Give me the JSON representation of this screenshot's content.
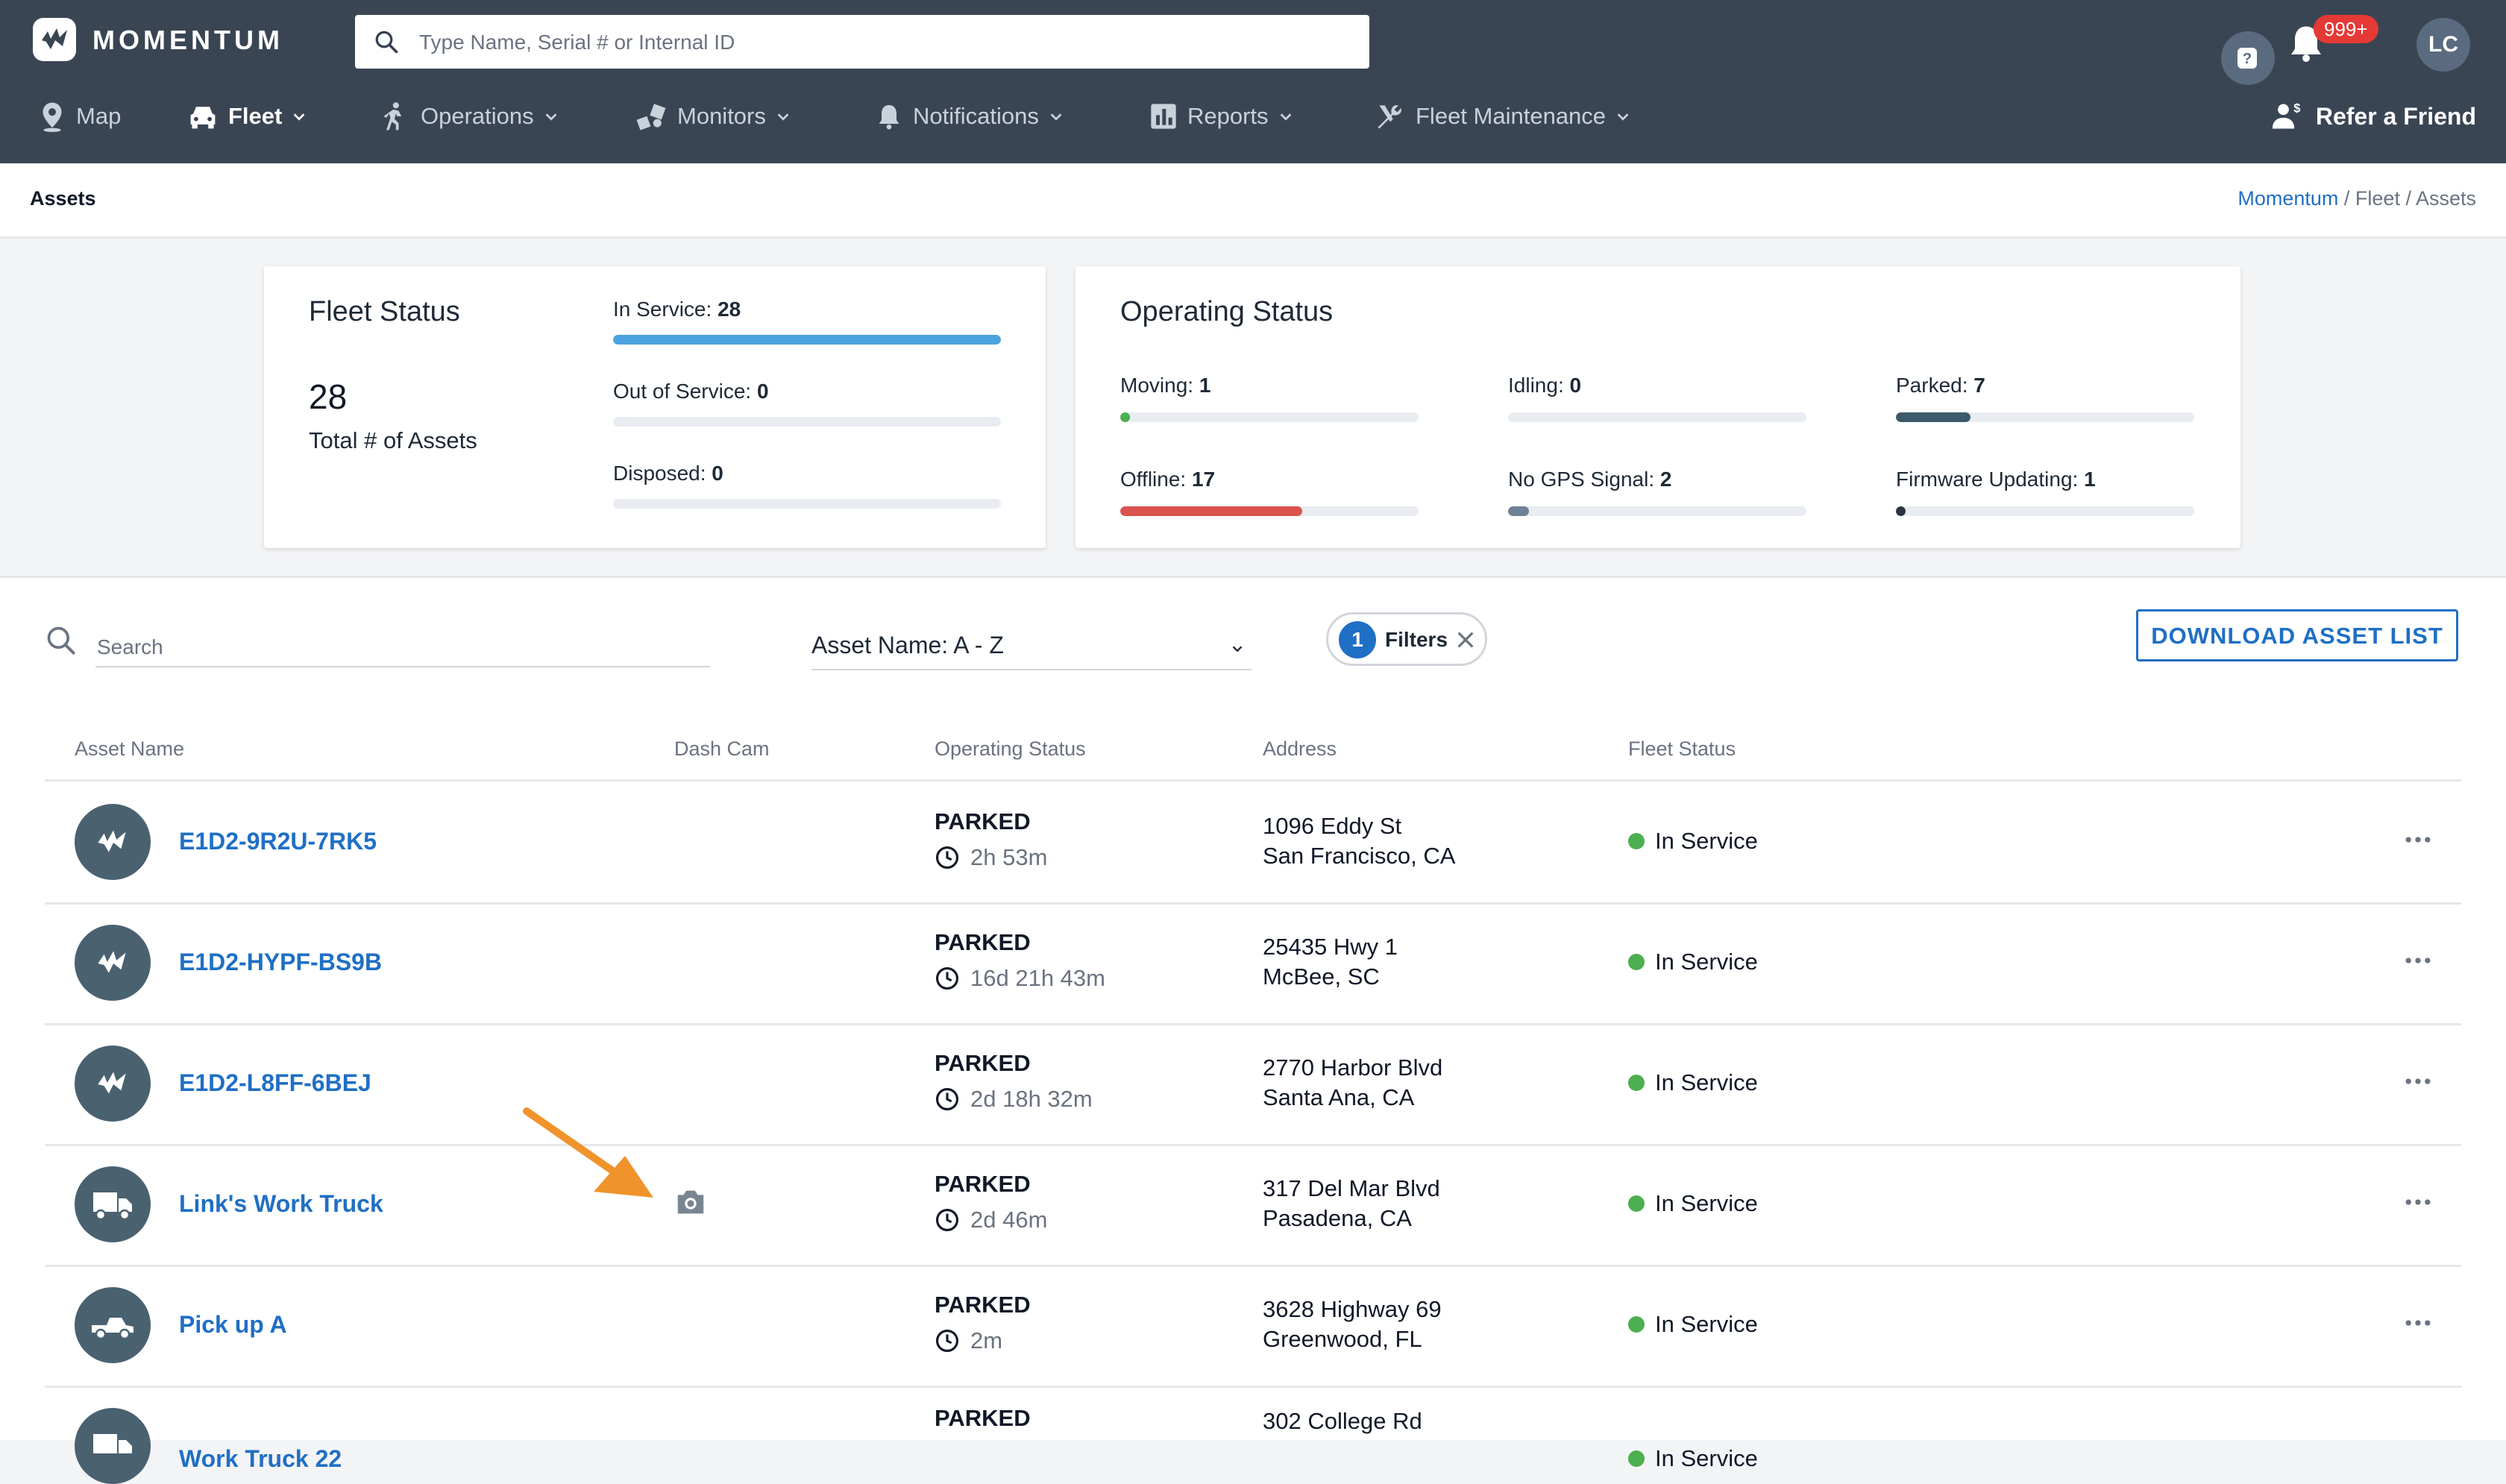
{
  "app": {
    "name": "MOMENTUM"
  },
  "header": {
    "search_placeholder": "Type Name, Serial # or Internal ID",
    "notifications_badge": "999+",
    "user_initials": "LC",
    "refer_label": "Refer a Friend"
  },
  "nav": {
    "map": "Map",
    "fleet": "Fleet",
    "operations": "Operations",
    "monitors": "Monitors",
    "notifications": "Notifications",
    "reports": "Reports",
    "maintenance": "Fleet Maintenance"
  },
  "breadcrumb": {
    "page_title": "Assets",
    "root": "Momentum",
    "sep": " / ",
    "mid": "Fleet",
    "current": "Assets"
  },
  "fleet_status": {
    "title": "Fleet Status",
    "total": "28",
    "total_label": "Total # of Assets",
    "in_service_label": "In Service:",
    "in_service_value": "28",
    "in_service_fraction": 1.0,
    "out_label": "Out of Service:",
    "out_value": "0",
    "out_fraction": 0,
    "disposed_label": "Disposed:",
    "disposed_value": "0",
    "disposed_fraction": 0
  },
  "operating_status": {
    "title": "Operating Status",
    "moving_label": "Moving:",
    "moving_value": "1",
    "moving_fraction": 0.036,
    "idling_label": "Idling:",
    "idling_value": "0",
    "idling_fraction": 0,
    "parked_label": "Parked:",
    "parked_value": "7",
    "parked_fraction": 0.25,
    "offline_label": "Offline:",
    "offline_value": "17",
    "offline_fraction": 0.61,
    "nogps_label": "No GPS Signal:",
    "nogps_value": "2",
    "nogps_fraction": 0.071,
    "firmware_label": "Firmware Updating:",
    "firmware_value": "1",
    "firmware_fraction": 0.036
  },
  "colors": {
    "in_service_bar": "#4aa3df",
    "moving_bar": "#4caf50",
    "parked_bar": "#3d5a6c",
    "offline_bar": "#d9534f",
    "nogps_bar": "#6f8194",
    "firmware_bar": "#2c3440"
  },
  "list": {
    "search_placeholder": "Search",
    "sort_value": "Asset Name: A - Z",
    "filters_count": "1",
    "filters_label": "Filters",
    "download_label": "DOWNLOAD ASSET LIST",
    "columns": {
      "name": "Asset Name",
      "dashcam": "Dash Cam",
      "op": "Operating Status",
      "address": "Address",
      "fleet": "Fleet Status"
    },
    "rows": [
      {
        "name": "E1D2-9R2U-7RK5",
        "icon": "momentum-logo-icon",
        "op": "PARKED",
        "duration": "2h 53m",
        "addr1": "1096 Eddy St",
        "addr2": "San Francisco, CA",
        "fleet": "In Service"
      },
      {
        "name": "E1D2-HYPF-BS9B",
        "icon": "momentum-logo-icon",
        "op": "PARKED",
        "duration": "16d 21h 43m",
        "addr1": "25435 Hwy 1",
        "addr2": "McBee, SC",
        "fleet": "In Service"
      },
      {
        "name": "E1D2-L8FF-6BEJ",
        "icon": "momentum-logo-icon",
        "op": "PARKED",
        "duration": "2d 18h 32m",
        "addr1": "2770 Harbor Blvd",
        "addr2": "Santa Ana, CA",
        "fleet": "In Service"
      },
      {
        "name": "Link's Work Truck",
        "icon": "box-truck-icon",
        "op": "PARKED",
        "duration": "2d 46m",
        "addr1": "317 Del Mar Blvd",
        "addr2": "Pasadena, CA",
        "fleet": "In Service",
        "dashcam": true
      },
      {
        "name": "Pick up A",
        "icon": "pickup-truck-icon",
        "op": "PARKED",
        "duration": "2m",
        "addr1": "3628 Highway 69",
        "addr2": "Greenwood, FL",
        "fleet": "In Service"
      },
      {
        "name": "Work Truck 22",
        "icon": "box-truck-icon",
        "op": "PARKED",
        "duration": "",
        "addr1": "302 College Rd",
        "addr2": "",
        "fleet": "In Service"
      }
    ]
  }
}
